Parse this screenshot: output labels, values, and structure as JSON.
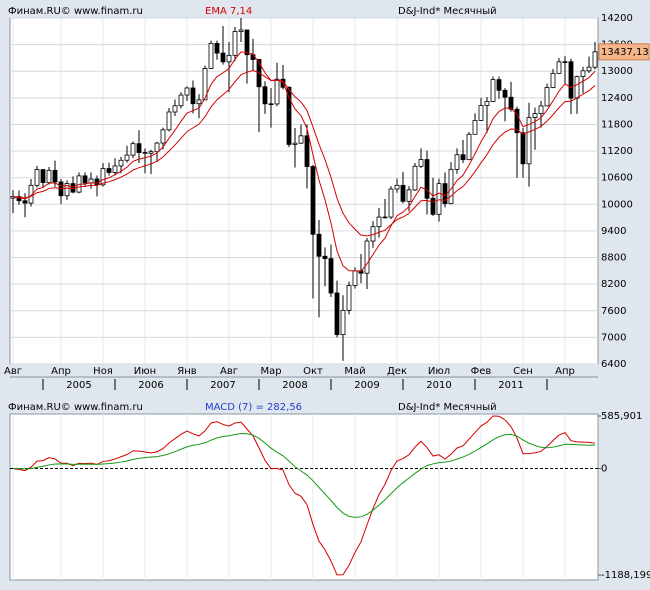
{
  "chart_data": [
    {
      "type": "candlestick",
      "header_left": "Финам.RU©  www.finam.ru",
      "title": "EMA 7,14",
      "header_right": "D&J-Ind* Месячный",
      "categories": [
        "Авг",
        null,
        null,
        null,
        null,
        null,
        null,
        null,
        "Апр",
        null,
        null,
        null,
        null,
        null,
        null,
        "Ноя",
        null,
        null,
        null,
        null,
        null,
        null,
        "Июн",
        null,
        null,
        null,
        null,
        null,
        null,
        "Янв",
        null,
        null,
        null,
        null,
        null,
        null,
        "Авг",
        null,
        null,
        null,
        null,
        null,
        null,
        "Мар",
        null,
        null,
        null,
        null,
        null,
        null,
        "Окт",
        null,
        null,
        null,
        null,
        null,
        null,
        "Май",
        null,
        null,
        null,
        null,
        null,
        null,
        "Дек",
        null,
        null,
        null,
        null,
        null,
        null,
        "Июл",
        null,
        null,
        null,
        null,
        null,
        null,
        "Фев",
        null,
        null,
        null,
        null,
        null,
        null,
        "Сен",
        null,
        null,
        null,
        null,
        null,
        null,
        "Апр",
        null,
        null,
        null,
        null,
        null
      ],
      "years": [
        "2005",
        "2006",
        "2007",
        "2008",
        "2009",
        "2010",
        "2011"
      ],
      "open": [
        10140,
        10174,
        10080,
        10027,
        10428,
        10783,
        10490,
        10766,
        10504,
        10193,
        10467,
        10275,
        10641,
        10482,
        10569,
        10440,
        10806,
        10718,
        10865,
        10993,
        11109,
        11367,
        11168,
        11150,
        11186,
        11381,
        11679,
        12081,
        12222,
        12463,
        12622,
        12268,
        12354,
        13063,
        13628,
        13409,
        13212,
        13358,
        13896,
        13930,
        13372,
        13265,
        12650,
        12266,
        12263,
        12820,
        12638,
        11350,
        11378,
        11544,
        10851,
        9325,
        8829,
        8776,
        8001,
        7063,
        7609,
        8168,
        8500,
        8447,
        9172,
        9496,
        9712,
        9713,
        10345,
        10428,
        10067,
        10325,
        10857,
        11009,
        10137,
        9774,
        10466,
        10015,
        10788,
        11118,
        11006,
        11578,
        11892,
        12226,
        12320,
        12811,
        12570,
        12414,
        12143,
        11614,
        10913,
        11955,
        12046,
        12218,
        12633,
        12952,
        13212,
        13214,
        12393,
        12880,
        13009,
        13091
      ],
      "high": [
        10320,
        10310,
        10250,
        10570,
        10870,
        10790,
        10840,
        10985,
        10570,
        10540,
        10630,
        10720,
        10720,
        10720,
        10650,
        10930,
        10940,
        11040,
        11070,
        11320,
        11420,
        11670,
        11260,
        11230,
        11410,
        11730,
        12170,
        12360,
        12530,
        12660,
        12790,
        12480,
        13130,
        13690,
        13690,
        14020,
        13660,
        14000,
        14200,
        13940,
        13730,
        13280,
        12770,
        12620,
        13190,
        13140,
        12660,
        11720,
        11800,
        11800,
        10890,
        9650,
        9030,
        9090,
        8280,
        7950,
        8260,
        8580,
        8880,
        9240,
        9620,
        9920,
        10120,
        10410,
        10580,
        10730,
        10410,
        10930,
        11260,
        11210,
        10600,
        10580,
        10720,
        10950,
        11260,
        11450,
        11630,
        12050,
        12400,
        12420,
        12880,
        12880,
        12620,
        12760,
        12200,
        11720,
        12290,
        12180,
        12330,
        12720,
        13050,
        13300,
        13340,
        13280,
        12900,
        13100,
        13330,
        13660
      ],
      "low": [
        9800,
        9990,
        9708,
        9950,
        10380,
        10370,
        10450,
        10400,
        10010,
        10100,
        10250,
        10250,
        10400,
        10350,
        10180,
        10400,
        10650,
        10660,
        10700,
        10940,
        11040,
        10930,
        10700,
        10680,
        10960,
        11240,
        11640,
        11990,
        12160,
        12330,
        12050,
        11940,
        12350,
        13050,
        13260,
        13150,
        12520,
        13230,
        13660,
        12720,
        13020,
        11630,
        12040,
        11730,
        12210,
        12590,
        11290,
        10830,
        11360,
        10360,
        7880,
        7450,
        8150,
        7910,
        7000,
        6470,
        7520,
        8100,
        8220,
        8090,
        9020,
        9250,
        9680,
        9670,
        10260,
        10020,
        9840,
        10300,
        10820,
        9770,
        9740,
        9610,
        9930,
        10000,
        10690,
        10930,
        11000,
        11570,
        11880,
        11610,
        12310,
        12380,
        11870,
        12090,
        10600,
        10600,
        10400,
        11230,
        11730,
        12210,
        12620,
        12940,
        12710,
        12030,
        12040,
        12500,
        12960,
        13040
      ],
      "close": [
        10174,
        10080,
        10027,
        10428,
        10783,
        10490,
        10766,
        10504,
        10193,
        10467,
        10275,
        10641,
        10482,
        10569,
        10440,
        10806,
        10718,
        10865,
        10993,
        11109,
        11367,
        11168,
        11150,
        11186,
        11381,
        11679,
        12081,
        12222,
        12463,
        12622,
        12268,
        12354,
        13063,
        13628,
        13409,
        13212,
        13358,
        13896,
        13930,
        13372,
        13265,
        12650,
        12266,
        12263,
        12820,
        12638,
        11350,
        11378,
        11544,
        10851,
        9325,
        8829,
        8776,
        8001,
        7063,
        7609,
        8168,
        8500,
        8447,
        9172,
        9496,
        9712,
        9713,
        10345,
        10428,
        10067,
        10325,
        10857,
        11009,
        10137,
        9774,
        10466,
        10015,
        10788,
        11118,
        11006,
        11578,
        11892,
        12226,
        12320,
        12811,
        12570,
        12414,
        12143,
        11614,
        10913,
        11955,
        12046,
        12218,
        12633,
        12952,
        13212,
        13214,
        12393,
        12880,
        13009,
        13091,
        13437.13
      ],
      "up_color": "#ffffff",
      "down_color": "#000000",
      "series": [
        {
          "color": "#d40000",
          "values": [
            10174,
            10150,
            10119,
            10196,
            10343,
            10380,
            10476,
            10483,
            10410,
            10424,
            10387,
            10450,
            10458,
            10486,
            10474,
            10557,
            10597,
            10664,
            10746,
            10837,
            10969,
            11019,
            11052,
            11085,
            11159,
            11289,
            11487,
            11671,
            11869,
            12057,
            12110,
            12171,
            12394,
            12703,
            12880,
            12963,
            13062,
            13271,
            13436,
            13420,
            13381,
            13198,
            12965,
            12790,
            12798,
            12758,
            12406,
            12149,
            11998,
            11711,
            11115,
            10544,
            10102,
            9577,
            8949,
            8614,
            8502,
            8502,
            8488,
            8659,
            8868,
            9079,
            9238,
            9515,
            9743,
            9824,
            9949,
            10176,
            10384,
            10322,
            10185,
            10255,
            10195,
            10343,
            10537,
            10654,
            10885,
            11137,
            11409,
            11637,
            11931,
            12091,
            12172,
            12165,
            12027,
            11749,
            11801,
            11862,
            11951,
            12122,
            12330,
            12551,
            12717,
            12636,
            12697,
            12775,
            12854,
            13000
          ]
        },
        {
          "color": "#d40000",
          "values": [
            10174,
            10161,
            10143,
            10181,
            10261,
            10292,
            10355,
            10375,
            10351,
            10366,
            10354,
            10392,
            10404,
            10426,
            10428,
            10478,
            10510,
            10557,
            10615,
            10681,
            10772,
            10825,
            10868,
            10910,
            10973,
            11067,
            11202,
            11338,
            11488,
            11639,
            11723,
            11807,
            11974,
            12195,
            12357,
            12471,
            12589,
            12763,
            12919,
            12979,
            13017,
            12968,
            12874,
            12793,
            12797,
            12776,
            12586,
            12425,
            12308,
            12114,
            11742,
            11354,
            11010,
            10609,
            10136,
            9799,
            9582,
            9438,
            9306,
            9288,
            9316,
            9369,
            9415,
            9539,
            9658,
            9713,
            9795,
            9937,
            10080,
            10088,
            10046,
            10102,
            10090,
            10183,
            10308,
            10401,
            10558,
            10736,
            10935,
            11120,
            11345,
            11508,
            11629,
            11698,
            11687,
            11584,
            11633,
            11688,
            11759,
            11876,
            12019,
            12178,
            12316,
            12326,
            12400,
            12481,
            12562,
            12679
          ]
        }
      ],
      "ylim": [
        6400,
        14200
      ],
      "yticks": [
        6400,
        7000,
        7600,
        8200,
        8800,
        9400,
        10000,
        10600,
        11200,
        11800,
        12400,
        13000,
        13600,
        14200
      ],
      "grid": true,
      "last_price": {
        "value": 13437.13,
        "label": "13437,13"
      }
    },
    {
      "type": "line",
      "header_left": "Финам.RU©  www.finam.ru",
      "title": "MACD (7) = 282,56",
      "header_right": "D&J-Ind* Месячный",
      "series": [
        {
          "color": "#d40000",
          "values": [
            0,
            -11,
            -24,
            15,
            82,
            88,
            121,
            108,
            59,
            58,
            33,
            58,
            54,
            60,
            46,
            79,
            87,
            107,
            131,
            156,
            197,
            194,
            184,
            175,
            186,
            222,
            285,
            333,
            381,
            418,
            387,
            364,
            420,
            508,
            523,
            492,
            473,
            508,
            517,
            441,
            364,
            230,
            91,
            -3,
            1,
            -18,
            -180,
            -276,
            -310,
            -403,
            -627,
            -810,
            -908,
            -1032,
            -1187,
            -1185,
            -1080,
            -936,
            -818,
            -629,
            -448,
            -290,
            -177,
            -24,
            85,
            111,
            154,
            239,
            304,
            234,
            139,
            153,
            105,
            160,
            229,
            253,
            327,
            401,
            474,
            517,
            585.901,
            583,
            543,
            467,
            340,
            165,
            168,
            174,
            192,
            246,
            311,
            373,
            401,
            310,
            297,
            294,
            292,
            282.56
          ]
        },
        {
          "color": "#139a13",
          "values": [
            0,
            -1,
            -4,
            -1,
            13,
            25,
            40,
            50,
            50,
            50,
            46,
            47,
            47,
            48,
            46,
            50,
            55,
            62,
            72,
            84,
            101,
            114,
            122,
            128,
            133,
            145,
            164,
            188,
            215,
            243,
            260,
            270,
            287,
            316,
            342,
            357,
            366,
            379,
            391,
            388,
            372,
            337,
            285,
            227,
            182,
            142,
            83,
            20,
            -28,
            -73,
            -137,
            -212,
            -284,
            -357,
            -435,
            -497,
            -534,
            -545,
            -539,
            -511,
            -465,
            -408,
            -349,
            -282,
            -215,
            -158,
            -107,
            -55,
            -6,
            34,
            51,
            66,
            71,
            83,
            105,
            128,
            157,
            194,
            235,
            276,
            320,
            355,
            377,
            381,
            362,
            318,
            283,
            256,
            237,
            231,
            238,
            253,
            270,
            269,
            265,
            263,
            260,
            263
          ]
        }
      ],
      "ylim": [
        -1188.199,
        585.901
      ],
      "yticks": [
        {
          "value": 585.901,
          "label": "585,901"
        },
        0,
        {
          "value": -1188.199,
          "label": "-1188,199"
        }
      ],
      "zero_line": true
    }
  ]
}
